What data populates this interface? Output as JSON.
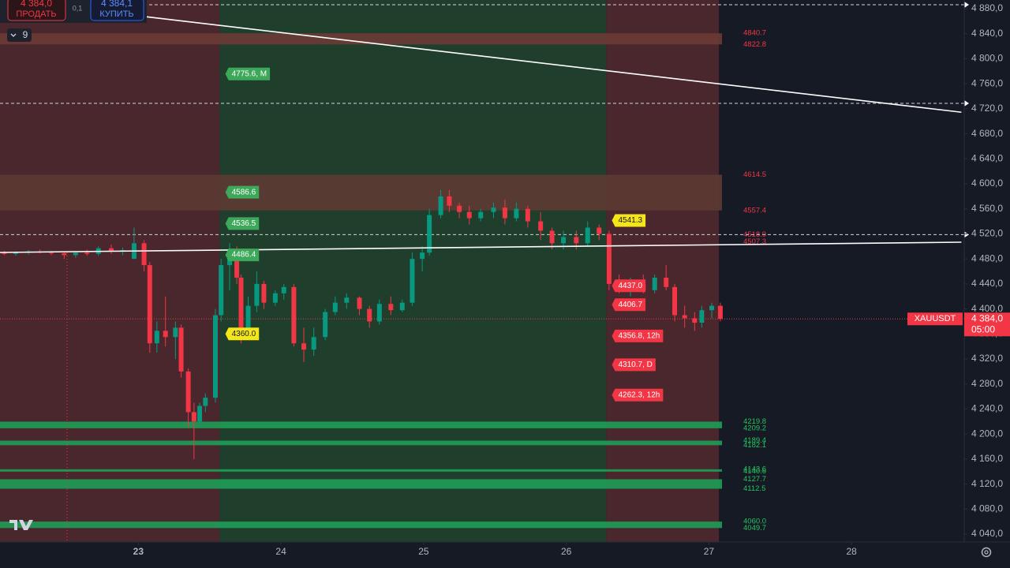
{
  "chart_data": {
    "type": "candlestick",
    "xlim": [
      22.03,
      28.79
    ],
    "ylim": [
      4027.4,
      4893.9
    ],
    "xticks": [
      23,
      24,
      25,
      26,
      27,
      28
    ],
    "yticks": [
      {
        "value": 4880,
        "label": "4 880,0"
      },
      {
        "value": 4840,
        "label": "4 840,0"
      },
      {
        "value": 4800,
        "label": "4 800,0"
      },
      {
        "value": 4760,
        "label": "4 760,0"
      },
      {
        "value": 4720,
        "label": "4 720,0"
      },
      {
        "value": 4680,
        "label": "4 680,0"
      },
      {
        "value": 4640,
        "label": "4 640,0"
      },
      {
        "value": 4600,
        "label": "4 600,0"
      },
      {
        "value": 4560,
        "label": "4 560,0"
      },
      {
        "value": 4520,
        "label": "4 520,0"
      },
      {
        "value": 4480,
        "label": "4 480,0"
      },
      {
        "value": 4440,
        "label": "4 440,0"
      },
      {
        "value": 4400,
        "label": "4 400,0"
      },
      {
        "value": 4360,
        "label": "4 360,0"
      },
      {
        "value": 4320,
        "label": "4 320,0"
      },
      {
        "value": 4280,
        "label": "4 280,0"
      },
      {
        "value": 4240,
        "label": "4 240,0"
      },
      {
        "value": 4200,
        "label": "4 200,0"
      },
      {
        "value": 4160,
        "label": "4 160,0"
      },
      {
        "value": 4120,
        "label": "4 120,0"
      },
      {
        "value": 4080,
        "label": "4 080,0"
      },
      {
        "value": 4040,
        "label": "4 040,0"
      }
    ],
    "up_color": "#089981",
    "down_color": "#f23645",
    "candles": {
      "x": [
        22.06,
        22.14,
        22.23,
        22.31,
        22.39,
        22.48,
        22.56,
        22.64,
        22.72,
        22.81,
        22.89,
        22.97,
        23.04,
        23.08,
        23.13,
        23.19,
        23.26,
        23.3,
        23.35,
        23.39,
        23.43,
        23.47,
        23.54,
        23.58,
        23.64,
        23.69,
        23.72,
        23.77,
        23.83,
        23.88,
        23.96,
        24.02,
        24.09,
        24.16,
        24.23,
        24.31,
        24.38,
        24.46,
        24.55,
        24.62,
        24.69,
        24.77,
        24.85,
        24.92,
        24.99,
        25.04,
        25.12,
        25.18,
        25.25,
        25.32,
        25.4,
        25.49,
        25.57,
        25.65,
        25.73,
        25.82,
        25.9,
        25.98,
        26.07,
        26.15,
        26.23,
        26.3,
        26.37,
        26.45,
        26.54,
        26.62,
        26.7,
        26.76,
        26.83,
        26.9,
        26.95,
        27.02,
        27.08
      ],
      "open": [
        4490,
        4488,
        4490,
        4492,
        4490,
        4489,
        4486,
        4490,
        4488,
        4497,
        4492,
        4480,
        4505,
        4470,
        4345,
        4365,
        4355,
        4370,
        4300,
        4235,
        4220,
        4245,
        4258,
        4390,
        4470,
        4490,
        4450,
        4360,
        4405,
        4440,
        4410,
        4425,
        4435,
        4345,
        4335,
        4355,
        4395,
        4410,
        4418,
        4400,
        4380,
        4408,
        4398,
        4410,
        4480,
        4490,
        4550,
        4580,
        4565,
        4555,
        4545,
        4555,
        4562,
        4545,
        4560,
        4540,
        4525,
        4505,
        4515,
        4505,
        4530,
        4520,
        4440,
        4435,
        4440,
        4430,
        4450,
        4435,
        4390,
        4385,
        4378,
        4398,
        4405
      ],
      "high": [
        4493,
        4492,
        4494,
        4495,
        4493,
        4492,
        4492,
        4495,
        4500,
        4503,
        4498,
        4530,
        4510,
        4475,
        4380,
        4420,
        4380,
        4375,
        4305,
        4250,
        4250,
        4265,
        4400,
        4480,
        4505,
        4500,
        4455,
        4420,
        4460,
        4445,
        4430,
        4440,
        4440,
        4370,
        4370,
        4400,
        4420,
        4425,
        4420,
        4405,
        4415,
        4420,
        4415,
        4490,
        4500,
        4560,
        4590,
        4590,
        4570,
        4565,
        4560,
        4570,
        4575,
        4570,
        4565,
        4555,
        4530,
        4525,
        4525,
        4540,
        4535,
        4525,
        4455,
        4450,
        4455,
        4455,
        4470,
        4440,
        4405,
        4395,
        4405,
        4410,
        4410
      ],
      "low": [
        4486,
        4485,
        4487,
        4489,
        4486,
        4480,
        4482,
        4485,
        4485,
        4488,
        4486,
        4480,
        4460,
        4330,
        4330,
        4340,
        4320,
        4290,
        4210,
        4160,
        4215,
        4235,
        4250,
        4380,
        4430,
        4440,
        4345,
        4355,
        4395,
        4400,
        4405,
        4415,
        4340,
        4315,
        4325,
        4350,
        4390,
        4400,
        4390,
        4370,
        4375,
        4390,
        4395,
        4405,
        4460,
        4485,
        4545,
        4555,
        4545,
        4535,
        4540,
        4545,
        4535,
        4540,
        4530,
        4510,
        4495,
        4495,
        4495,
        4500,
        4510,
        4430,
        4425,
        4420,
        4425,
        4425,
        4430,
        4380,
        4370,
        4365,
        4370,
        4385,
        4380
      ],
      "close": [
        4488,
        4490,
        4492,
        4490,
        4489,
        4486,
        4490,
        4488,
        4497,
        4492,
        4494,
        4505,
        4470,
        4345,
        4365,
        4355,
        4370,
        4300,
        4235,
        4220,
        4245,
        4258,
        4390,
        4470,
        4490,
        4450,
        4360,
        4405,
        4440,
        4410,
        4425,
        4435,
        4345,
        4335,
        4355,
        4395,
        4410,
        4418,
        4400,
        4380,
        4408,
        4398,
        4410,
        4480,
        4490,
        4550,
        4580,
        4565,
        4555,
        4545,
        4555,
        4562,
        4545,
        4560,
        4540,
        4525,
        4505,
        4515,
        4505,
        4530,
        4520,
        4440,
        4435,
        4440,
        4430,
        4450,
        4435,
        4390,
        4385,
        4378,
        4398,
        4405,
        4384
      ]
    },
    "zones": [
      {
        "start": 22.03,
        "end": 23.57,
        "color": "#4a262d"
      },
      {
        "start": 23.57,
        "end": 26.28,
        "color": "#1f3f2c"
      },
      {
        "start": 26.28,
        "end": 27.07,
        "color": "#4a262d"
      }
    ],
    "level_zones": [
      {
        "values": [
          4840.7,
          4822.8
        ],
        "value_labels": [
          "4840.7",
          "4822.8"
        ],
        "color": "#6a3b35",
        "label_color": "#f23645"
      },
      {
        "values": [
          4614.5,
          4557.4
        ],
        "value_labels": [
          "4614.5",
          "4557.4"
        ],
        "color": "#5d3a33",
        "label_color": "#f23645"
      },
      {
        "values": [
          4219.8,
          4209.2
        ],
        "value_labels": [
          "4219.8",
          "4209.2"
        ],
        "color": "#1e9e57",
        "label_color": "#22c55e"
      },
      {
        "values": [
          4189.4,
          4182.1
        ],
        "value_labels": [
          "4189.4",
          "4182.1"
        ],
        "color": "#1e9e57",
        "label_color": "#22c55e"
      },
      {
        "values": [
          4143.6,
          4140.6
        ],
        "value_labels": [
          "4143.6",
          "4140.6"
        ],
        "color": "#1e9e57",
        "label_color": "#22c55e"
      },
      {
        "values": [
          4127.7,
          4112.5
        ],
        "value_labels": [
          "4127.7",
          "4112.5"
        ],
        "color": "#1e9e57",
        "label_color": "#22c55e"
      },
      {
        "values": [
          4060,
          4049.7
        ],
        "value_labels": [
          "4060.0",
          "4049.7"
        ],
        "color": "#1e9e57",
        "label_color": "#22c55e"
      }
    ],
    "right_labels": [
      {
        "value": 4518.9,
        "label": "4518.9",
        "color": "#f23645"
      },
      {
        "value": 4507.3,
        "label": "4507.3",
        "color": "#f23645"
      }
    ],
    "horizontal_lines": [
      4886.3,
      4728.7,
      4518.9
    ],
    "trend_lines": [
      {
        "x": [
          23,
          28.77
        ],
        "y": [
          4868.6,
          4714.5
        ]
      },
      {
        "x": [
          22.03,
          28.77
        ],
        "y": [
          4490.3,
          4506.7
        ]
      }
    ],
    "callouts": [
      {
        "value": 4775.6,
        "label": "4775.6, M",
        "x": 23.61,
        "color": "#3ea85a"
      },
      {
        "value": 4586.6,
        "label": "4586.6",
        "x": 23.61,
        "color": "#3ea85a"
      },
      {
        "value": 4536.5,
        "label": "4536.5",
        "x": 23.61,
        "color": "#3ea85a"
      },
      {
        "value": 4486.4,
        "label": "4486.4",
        "x": 23.61,
        "color": "#3ea85a"
      },
      {
        "value": 4360,
        "label": "4360.0",
        "x": 23.61,
        "color": "#f5e61a"
      },
      {
        "value": 4541.3,
        "label": "4541.3",
        "x": 26.32,
        "color": "#f5e61a"
      },
      {
        "value": 4437,
        "label": "4437.0",
        "x": 26.32,
        "color": "#f23645"
      },
      {
        "value": 4406.7,
        "label": "4406.7",
        "x": 26.32,
        "color": "#f23645"
      },
      {
        "value": 4356.8,
        "label": "4356.8, 12h",
        "x": 26.32,
        "color": "#f23645"
      },
      {
        "value": 4310.7,
        "label": "4310.7, D",
        "x": 26.32,
        "color": "#f23645"
      },
      {
        "value": 4262.3,
        "label": "4262.3, 12h",
        "x": 26.32,
        "color": "#f23645"
      }
    ],
    "crosshair_x": 22.5,
    "current_price": {
      "value": 4384,
      "label": "4 384,0",
      "symbol": "XAUUSDT",
      "countdown": "05:00"
    }
  },
  "toolbar": {
    "sell_price": "4 384,0",
    "sell_label": "ПРОДАТЬ",
    "spread": "0,1",
    "buy_price": "4 384,1",
    "buy_label": "КУПИТЬ",
    "indicators": "9"
  }
}
